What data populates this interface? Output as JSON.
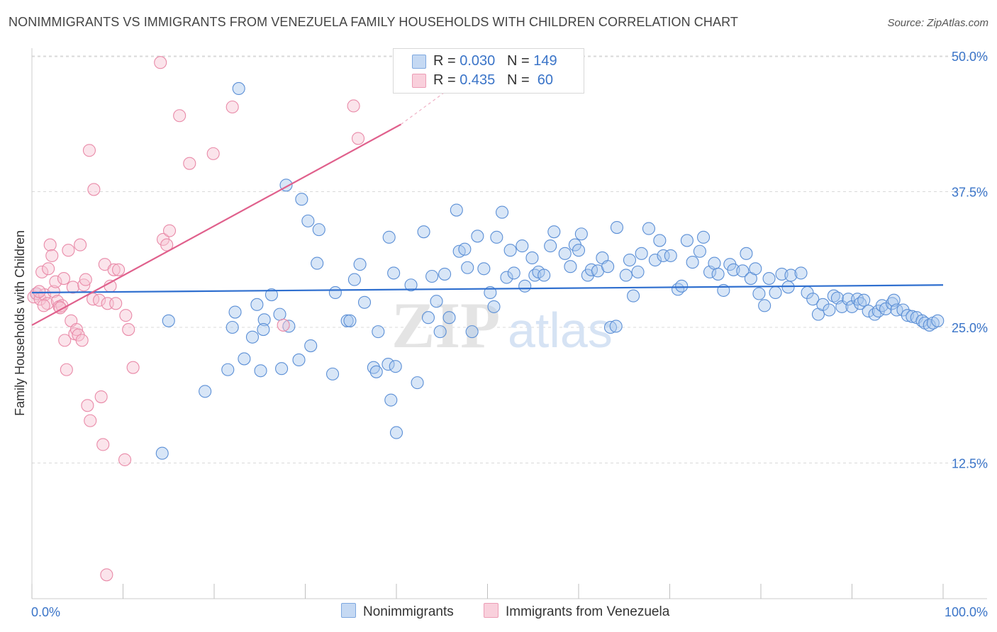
{
  "title": "NONIMMIGRANTS VS IMMIGRANTS FROM VENEZUELA FAMILY HOUSEHOLDS WITH CHILDREN CORRELATION CHART",
  "source": "Source: ZipAtlas.com",
  "watermark": {
    "zip": "ZIP",
    "atlas": "atlas"
  },
  "legend_top": [
    {
      "r_label": "R = ",
      "r_value": "0.030",
      "n_label": "N = ",
      "n_value": "149",
      "color": "#a9c7ee"
    },
    {
      "r_label": "R = ",
      "r_value": "0.435",
      "n_label": "N = ",
      "n_value": " 60",
      "color": "#f5b6ca"
    }
  ],
  "legend_bottom": [
    {
      "label": "Nonimmigrants",
      "color": "#a9c7ee"
    },
    {
      "label": "Immigrants from Venezuela",
      "color": "#f5b6ca"
    }
  ],
  "colors": {
    "blue_fill": "#a9c7ee",
    "blue_stroke": "#5b8fd6",
    "blue_line": "#2f6fcf",
    "pink_fill": "#f7c3d3",
    "pink_stroke": "#e98aa8",
    "pink_line": "#e0608c",
    "grid": "#d9d9d9",
    "tick_text": "#3a74c8"
  },
  "chart_data": {
    "type": "scatter",
    "title": "NONIMMIGRANTS VS IMMIGRANTS FROM VENEZUELA FAMILY HOUSEHOLDS WITH CHILDREN CORRELATION CHART",
    "xlabel": "",
    "ylabel": "Family Households with Children",
    "xlim": [
      0,
      100
    ],
    "ylim": [
      0,
      52
    ],
    "x_tick_labels": [
      "0.0%",
      "100.0%"
    ],
    "y_ticks": [
      12.5,
      25.0,
      37.5,
      50.0
    ],
    "y_tick_labels": [
      "12.5%",
      "25.0%",
      "37.5%",
      "50.0%"
    ],
    "grid": "horizontal dashed",
    "legend_position": "top-center",
    "series": [
      {
        "name": "Nonimmigrants",
        "trend": {
          "x": [
            0,
            100
          ],
          "y": [
            28.2,
            28.9
          ]
        },
        "points": [
          [
            0.5,
            28.1
          ],
          [
            22.7,
            47.0
          ],
          [
            27.9,
            38.1
          ],
          [
            29.6,
            36.8
          ],
          [
            30.3,
            34.8
          ],
          [
            31.5,
            34.0
          ],
          [
            27.2,
            26.2
          ],
          [
            25.5,
            25.7
          ],
          [
            25.4,
            24.8
          ],
          [
            27.4,
            21.2
          ],
          [
            25.1,
            21.0
          ],
          [
            21.5,
            21.1
          ],
          [
            24.2,
            24.1
          ],
          [
            28.2,
            25.1
          ],
          [
            29.3,
            22.0
          ],
          [
            30.6,
            23.3
          ],
          [
            31.3,
            30.9
          ],
          [
            33.0,
            20.7
          ],
          [
            33.3,
            28.2
          ],
          [
            34.6,
            25.6
          ],
          [
            34.9,
            25.6
          ],
          [
            35.4,
            29.4
          ],
          [
            36.0,
            30.8
          ],
          [
            36.5,
            27.3
          ],
          [
            37.5,
            21.3
          ],
          [
            37.8,
            20.9
          ],
          [
            38.0,
            24.6
          ],
          [
            39.2,
            33.3
          ],
          [
            39.1,
            21.6
          ],
          [
            39.4,
            18.3
          ],
          [
            39.7,
            30.0
          ],
          [
            40.0,
            15.3
          ],
          [
            39.9,
            21.4
          ],
          [
            41.6,
            28.9
          ],
          [
            42.3,
            19.9
          ],
          [
            43.0,
            33.8
          ],
          [
            43.5,
            25.9
          ],
          [
            43.9,
            29.7
          ],
          [
            44.4,
            27.4
          ],
          [
            44.8,
            24.6
          ],
          [
            45.3,
            29.9
          ],
          [
            45.8,
            25.9
          ],
          [
            46.6,
            35.8
          ],
          [
            46.9,
            32.0
          ],
          [
            47.5,
            32.2
          ],
          [
            47.8,
            30.5
          ],
          [
            48.3,
            24.6
          ],
          [
            48.9,
            33.4
          ],
          [
            49.6,
            30.4
          ],
          [
            50.3,
            28.2
          ],
          [
            50.7,
            26.9
          ],
          [
            51.0,
            33.3
          ],
          [
            51.6,
            35.6
          ],
          [
            52.1,
            29.6
          ],
          [
            52.5,
            32.1
          ],
          [
            52.9,
            30.0
          ],
          [
            53.8,
            32.5
          ],
          [
            54.1,
            28.8
          ],
          [
            54.9,
            31.4
          ],
          [
            55.2,
            29.8
          ],
          [
            55.6,
            30.1
          ],
          [
            56.2,
            29.8
          ],
          [
            56.9,
            32.5
          ],
          [
            57.3,
            33.8
          ],
          [
            58.5,
            31.8
          ],
          [
            59.1,
            30.6
          ],
          [
            59.6,
            32.6
          ],
          [
            60.0,
            32.1
          ],
          [
            60.3,
            33.6
          ],
          [
            61.0,
            29.8
          ],
          [
            61.4,
            30.3
          ],
          [
            62.1,
            30.2
          ],
          [
            62.6,
            31.4
          ],
          [
            63.2,
            30.6
          ],
          [
            63.5,
            25.0
          ],
          [
            64.1,
            25.1
          ],
          [
            64.2,
            34.2
          ],
          [
            65.2,
            29.8
          ],
          [
            65.6,
            31.2
          ],
          [
            66.0,
            27.9
          ],
          [
            66.5,
            30.1
          ],
          [
            66.9,
            31.8
          ],
          [
            67.7,
            34.1
          ],
          [
            68.4,
            31.2
          ],
          [
            69.3,
            31.6
          ],
          [
            68.9,
            33.0
          ],
          [
            70.1,
            31.6
          ],
          [
            70.9,
            28.5
          ],
          [
            71.3,
            28.8
          ],
          [
            71.9,
            33.0
          ],
          [
            72.5,
            31.0
          ],
          [
            73.3,
            32.0
          ],
          [
            73.7,
            33.3
          ],
          [
            74.4,
            30.1
          ],
          [
            74.9,
            30.9
          ],
          [
            75.3,
            29.9
          ],
          [
            75.9,
            28.4
          ],
          [
            76.6,
            30.8
          ],
          [
            77.0,
            30.3
          ],
          [
            78.0,
            30.2
          ],
          [
            78.4,
            31.8
          ],
          [
            78.9,
            29.5
          ],
          [
            79.4,
            30.4
          ],
          [
            79.8,
            28.1
          ],
          [
            80.4,
            27.0
          ],
          [
            80.9,
            29.5
          ],
          [
            81.6,
            28.2
          ],
          [
            82.3,
            29.9
          ],
          [
            83.0,
            28.7
          ],
          [
            83.3,
            29.8
          ],
          [
            84.4,
            30.0
          ],
          [
            85.1,
            28.2
          ],
          [
            85.7,
            27.6
          ],
          [
            86.3,
            26.2
          ],
          [
            86.8,
            27.1
          ],
          [
            87.5,
            26.6
          ],
          [
            88.0,
            27.9
          ],
          [
            88.4,
            27.7
          ],
          [
            88.9,
            26.9
          ],
          [
            89.6,
            27.6
          ],
          [
            90.0,
            26.9
          ],
          [
            90.6,
            27.6
          ],
          [
            90.9,
            27.2
          ],
          [
            91.3,
            27.5
          ],
          [
            91.8,
            26.5
          ],
          [
            92.5,
            26.2
          ],
          [
            92.9,
            26.5
          ],
          [
            93.3,
            27.0
          ],
          [
            93.7,
            26.7
          ],
          [
            94.4,
            27.2
          ],
          [
            94.6,
            27.5
          ],
          [
            94.9,
            26.6
          ],
          [
            95.6,
            26.6
          ],
          [
            96.1,
            26.1
          ],
          [
            96.6,
            26.0
          ],
          [
            97.1,
            25.9
          ],
          [
            97.7,
            25.6
          ],
          [
            98.0,
            25.4
          ],
          [
            98.5,
            25.2
          ],
          [
            98.9,
            25.4
          ],
          [
            99.4,
            25.6
          ],
          [
            22.3,
            26.4
          ],
          [
            22.0,
            25.0
          ],
          [
            24.7,
            27.1
          ],
          [
            14.3,
            13.4
          ],
          [
            15.0,
            25.6
          ],
          [
            19.0,
            19.1
          ],
          [
            23.3,
            22.1
          ],
          [
            26.3,
            28.0
          ]
        ]
      },
      {
        "name": "Immigrants from Venezuela",
        "trend": {
          "x": [
            0,
            40.5
          ],
          "y": [
            25.2,
            43.7
          ]
        },
        "trend_dashed": {
          "x": [
            40.5,
            46.5
          ],
          "y": [
            43.7,
            47.4
          ]
        },
        "points": [
          [
            0.2,
            27.8
          ],
          [
            0.5,
            28.1
          ],
          [
            0.9,
            27.6
          ],
          [
            1.1,
            30.1
          ],
          [
            1.4,
            28.0
          ],
          [
            1.7,
            27.2
          ],
          [
            1.8,
            30.4
          ],
          [
            2.0,
            32.6
          ],
          [
            2.2,
            31.6
          ],
          [
            2.4,
            28.3
          ],
          [
            2.6,
            29.2
          ],
          [
            2.8,
            27.4
          ],
          [
            3.0,
            26.9
          ],
          [
            3.3,
            27.0
          ],
          [
            3.5,
            29.5
          ],
          [
            3.6,
            23.8
          ],
          [
            3.8,
            21.1
          ],
          [
            4.0,
            32.1
          ],
          [
            4.3,
            25.6
          ],
          [
            4.5,
            28.7
          ],
          [
            4.7,
            24.4
          ],
          [
            4.9,
            24.8
          ],
          [
            5.1,
            24.3
          ],
          [
            5.3,
            32.6
          ],
          [
            5.5,
            23.8
          ],
          [
            5.7,
            28.9
          ],
          [
            5.9,
            29.4
          ],
          [
            6.1,
            17.8
          ],
          [
            6.3,
            41.3
          ],
          [
            6.4,
            16.4
          ],
          [
            6.7,
            27.6
          ],
          [
            6.8,
            37.7
          ],
          [
            7.4,
            27.5
          ],
          [
            7.6,
            18.6
          ],
          [
            7.8,
            14.2
          ],
          [
            8.0,
            30.8
          ],
          [
            8.3,
            27.2
          ],
          [
            8.6,
            28.8
          ],
          [
            9.0,
            30.3
          ],
          [
            9.2,
            27.2
          ],
          [
            9.5,
            30.3
          ],
          [
            10.3,
            26.1
          ],
          [
            10.6,
            24.8
          ],
          [
            10.2,
            12.8
          ],
          [
            11.1,
            21.3
          ],
          [
            14.1,
            49.4
          ],
          [
            14.4,
            33.1
          ],
          [
            14.8,
            32.6
          ],
          [
            15.1,
            33.9
          ],
          [
            16.2,
            44.5
          ],
          [
            17.3,
            40.1
          ],
          [
            19.9,
            41.0
          ],
          [
            22.0,
            45.3
          ],
          [
            27.6,
            25.2
          ],
          [
            35.3,
            45.4
          ],
          [
            35.8,
            42.4
          ],
          [
            8.2,
            2.2
          ],
          [
            0.8,
            28.3
          ],
          [
            1.3,
            27.0
          ],
          [
            3.1,
            26.8
          ]
        ]
      }
    ]
  }
}
